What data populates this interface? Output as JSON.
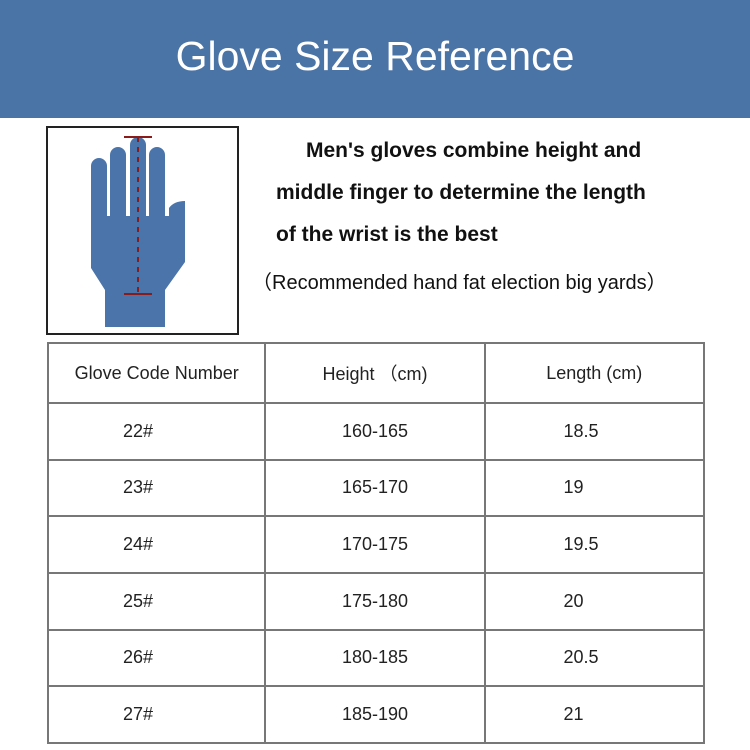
{
  "title": "Glove Size Reference",
  "description": {
    "lines": [
      "Men's gloves combine height and",
      "middle finger to determine the length",
      "of the wrist is the best"
    ],
    "note": "（Recommended hand fat election big yards）"
  },
  "image": {
    "icon": "hand-measurement-icon",
    "hand_color": "#4a74aa",
    "ruler_color": "#8b1a1a"
  },
  "table": {
    "headers": [
      "Glove Code Number",
      "Height （cm)",
      "Length (cm)"
    ],
    "rows": [
      [
        "22#",
        "160-165",
        "18.5"
      ],
      [
        "23#",
        "165-170",
        "19"
      ],
      [
        "24#",
        "170-175",
        "19.5"
      ],
      [
        "25#",
        "175-180",
        "20"
      ],
      [
        "26#",
        "180-185",
        "20.5"
      ],
      [
        "27#",
        "185-190",
        "21"
      ]
    ]
  },
  "colors": {
    "banner": "#4a73a6"
  }
}
